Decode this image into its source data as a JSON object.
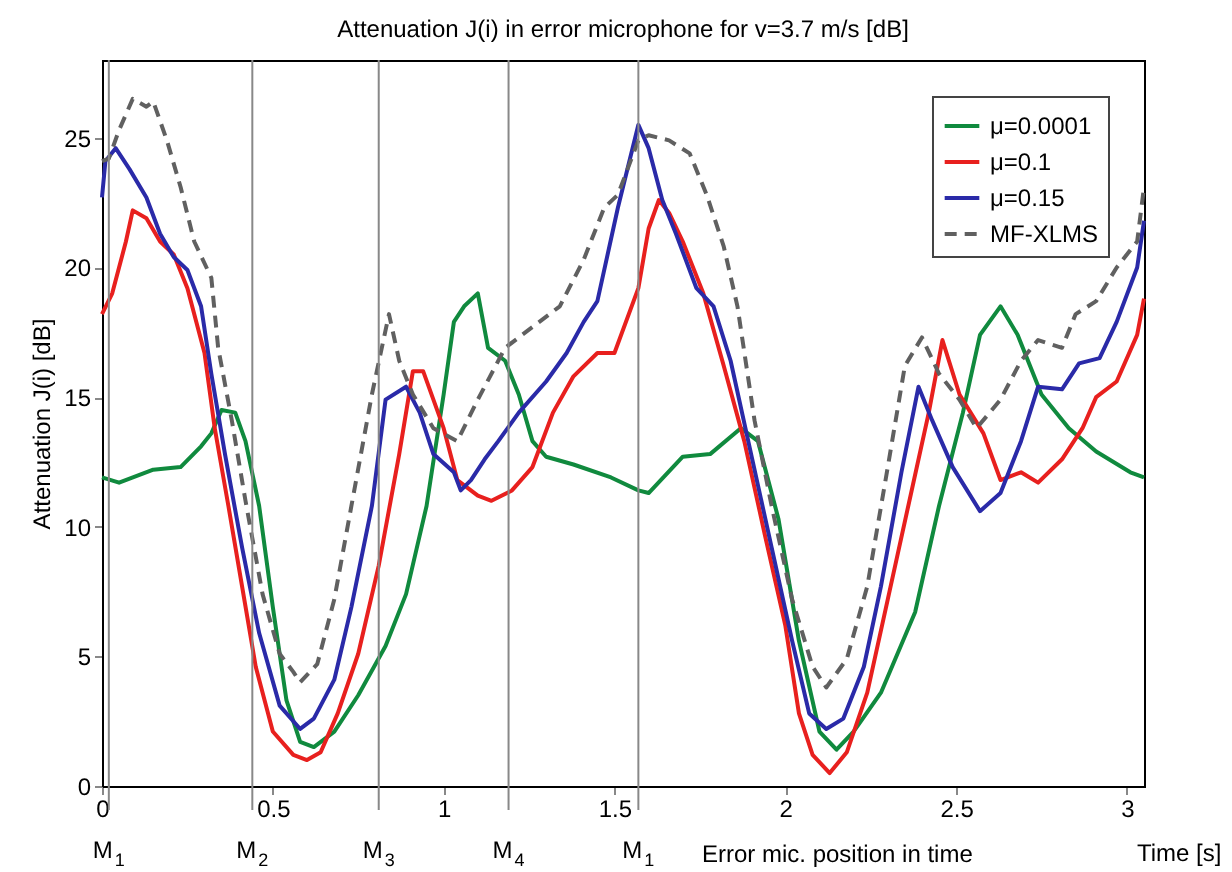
{
  "chart_data": {
    "type": "line",
    "title": "Attenuation J(i) in error microphone for v=3.7 m/s [dB]",
    "xlabel": "Time [s]",
    "ylabel": "Attenuation J(i) [dB]",
    "annotations": [
      "Error mic. position in time"
    ],
    "xlim": [
      0,
      3.05
    ],
    "xticks": [
      0,
      0.5,
      1,
      1.5,
      2,
      2.5,
      3
    ],
    "ylim": [
      0,
      28
    ],
    "yticks": [
      0,
      5,
      10,
      15,
      20,
      25
    ],
    "grid": false,
    "legend": "top right",
    "marker": "none",
    "ref_lines": [
      {
        "axis": "x",
        "value": 0.02,
        "label": "M$_{1}$"
      },
      {
        "axis": "x",
        "value": 0.44,
        "label": "M$_{2}$"
      },
      {
        "axis": "x",
        "value": 0.81,
        "label": "M$_{3}$"
      },
      {
        "axis": "x",
        "value": 1.19,
        "label": "M$_{4}$"
      },
      {
        "axis": "x",
        "value": 1.57,
        "label": "M$_{1}$"
      }
    ],
    "series": [
      {
        "name": "μ=0.0001",
        "color": "#108a3e",
        "line_style": "solid",
        "x": [
          0,
          0.05,
          0.15,
          0.23,
          0.29,
          0.32,
          0.35,
          0.39,
          0.42,
          0.46,
          0.5,
          0.54,
          0.58,
          0.62,
          0.68,
          0.75,
          0.83,
          0.89,
          0.95,
          1.0,
          1.03,
          1.06,
          1.1,
          1.13,
          1.18,
          1.22,
          1.26,
          1.3,
          1.38,
          1.49,
          1.57,
          1.6,
          1.7,
          1.78,
          1.87,
          1.92,
          1.98,
          2.04,
          2.1,
          2.15,
          2.2,
          2.28,
          2.38,
          2.45,
          2.52,
          2.57,
          2.63,
          2.68,
          2.75,
          2.83,
          2.91,
          3.01,
          3.05
        ],
        "values": [
          11.9,
          11.7,
          12.2,
          12.3,
          13.1,
          13.6,
          14.5,
          14.4,
          13.3,
          10.8,
          6.9,
          3.3,
          1.7,
          1.5,
          2.1,
          3.5,
          5.4,
          7.4,
          10.8,
          15.1,
          17.9,
          18.5,
          19.0,
          16.9,
          16.4,
          15.1,
          13.3,
          12.7,
          12.4,
          11.9,
          11.4,
          11.3,
          12.7,
          12.8,
          13.8,
          13.3,
          10.3,
          5.6,
          2.1,
          1.4,
          2.1,
          3.6,
          6.7,
          10.8,
          14.4,
          17.4,
          18.5,
          17.4,
          15.1,
          13.8,
          12.9,
          12.1,
          11.9
        ]
      },
      {
        "name": "μ=0.1",
        "color": "#e8201e",
        "line_style": "solid",
        "x": [
          0,
          0.03,
          0.07,
          0.09,
          0.13,
          0.17,
          0.21,
          0.25,
          0.3,
          0.33,
          0.37,
          0.41,
          0.45,
          0.5,
          0.56,
          0.6,
          0.64,
          0.69,
          0.75,
          0.81,
          0.87,
          0.91,
          0.94,
          0.97,
          1.0,
          1.04,
          1.1,
          1.14,
          1.2,
          1.26,
          1.32,
          1.38,
          1.45,
          1.5,
          1.57,
          1.6,
          1.63,
          1.66,
          1.7,
          1.76,
          1.82,
          1.88,
          1.94,
          2.0,
          2.04,
          2.08,
          2.13,
          2.18,
          2.24,
          2.3,
          2.36,
          2.42,
          2.46,
          2.51,
          2.58,
          2.63,
          2.69,
          2.74,
          2.81,
          2.87,
          2.91,
          2.97,
          3.03,
          3.05
        ],
        "values": [
          18.2,
          19.0,
          21.0,
          22.2,
          21.9,
          21.0,
          20.5,
          19.2,
          16.7,
          13.8,
          10.8,
          7.7,
          4.6,
          2.1,
          1.2,
          1.0,
          1.3,
          2.8,
          5.1,
          8.5,
          12.8,
          16.0,
          16.0,
          14.9,
          13.8,
          11.8,
          11.2,
          11.0,
          11.4,
          12.3,
          14.4,
          15.8,
          16.7,
          16.7,
          19.2,
          21.5,
          22.6,
          22.1,
          21.0,
          19.0,
          16.2,
          13.3,
          9.7,
          6.2,
          2.8,
          1.2,
          0.5,
          1.3,
          3.6,
          7.2,
          10.8,
          14.4,
          17.2,
          15.1,
          13.6,
          11.8,
          12.1,
          11.7,
          12.6,
          13.8,
          15.0,
          15.6,
          17.4,
          18.8
        ]
      },
      {
        "name": "μ=0.15",
        "color": "#2a2aa8",
        "line_style": "solid",
        "x": [
          0,
          0.01,
          0.04,
          0.08,
          0.13,
          0.17,
          0.21,
          0.25,
          0.29,
          0.32,
          0.36,
          0.41,
          0.46,
          0.52,
          0.58,
          0.62,
          0.68,
          0.73,
          0.79,
          0.83,
          0.89,
          0.93,
          0.97,
          1.03,
          1.05,
          1.08,
          1.12,
          1.16,
          1.22,
          1.3,
          1.36,
          1.41,
          1.45,
          1.51,
          1.57,
          1.6,
          1.64,
          1.68,
          1.74,
          1.79,
          1.84,
          1.9,
          1.96,
          2.02,
          2.07,
          2.12,
          2.17,
          2.23,
          2.28,
          2.34,
          2.39,
          2.43,
          2.49,
          2.57,
          2.63,
          2.69,
          2.74,
          2.81,
          2.86,
          2.92,
          2.97,
          3.03,
          3.05
        ],
        "values": [
          22.7,
          24.1,
          24.6,
          23.8,
          22.7,
          21.3,
          20.4,
          19.9,
          18.5,
          15.9,
          12.8,
          9.2,
          5.9,
          3.1,
          2.2,
          2.6,
          4.1,
          6.9,
          10.8,
          14.9,
          15.4,
          14.4,
          12.8,
          12.1,
          11.4,
          11.8,
          12.6,
          13.3,
          14.4,
          15.6,
          16.7,
          17.9,
          18.7,
          22.3,
          25.5,
          24.6,
          22.6,
          21.3,
          19.2,
          18.5,
          16.4,
          12.8,
          9.2,
          5.6,
          2.8,
          2.2,
          2.6,
          4.6,
          7.7,
          12.1,
          15.4,
          14.1,
          12.3,
          10.6,
          11.3,
          13.3,
          15.4,
          15.3,
          16.3,
          16.5,
          17.9,
          20.0,
          21.8
        ]
      },
      {
        "name": "MF-XLMS",
        "color": "#606060",
        "line_style": "dashed",
        "x": [
          0,
          0.02,
          0.05,
          0.09,
          0.13,
          0.15,
          0.19,
          0.23,
          0.27,
          0.32,
          0.34,
          0.38,
          0.42,
          0.47,
          0.52,
          0.56,
          0.58,
          0.63,
          0.68,
          0.73,
          0.79,
          0.84,
          0.87,
          0.91,
          0.97,
          1.04,
          1.1,
          1.18,
          1.26,
          1.34,
          1.41,
          1.47,
          1.51,
          1.57,
          1.6,
          1.66,
          1.72,
          1.77,
          1.82,
          1.86,
          1.91,
          1.96,
          2.02,
          2.08,
          2.12,
          2.18,
          2.24,
          2.3,
          2.35,
          2.4,
          2.45,
          2.51,
          2.56,
          2.63,
          2.69,
          2.74,
          2.81,
          2.85,
          2.91,
          2.97,
          3.03,
          3.05
        ],
        "values": [
          24.1,
          24.2,
          25.3,
          26.5,
          26.2,
          26.4,
          24.9,
          23.1,
          21.0,
          19.6,
          16.9,
          14.1,
          11.0,
          7.4,
          5.1,
          4.4,
          4.0,
          4.7,
          7.2,
          10.8,
          15.1,
          18.2,
          16.4,
          15.1,
          13.8,
          13.3,
          14.9,
          16.9,
          17.7,
          18.5,
          20.3,
          22.3,
          22.8,
          24.9,
          25.1,
          24.9,
          24.4,
          22.8,
          20.8,
          18.5,
          14.1,
          10.8,
          7.2,
          4.6,
          3.8,
          4.9,
          7.7,
          12.3,
          16.2,
          17.3,
          15.9,
          14.9,
          13.8,
          14.9,
          16.4,
          17.2,
          16.9,
          18.2,
          18.7,
          20.0,
          21.0,
          23.1
        ]
      }
    ]
  }
}
